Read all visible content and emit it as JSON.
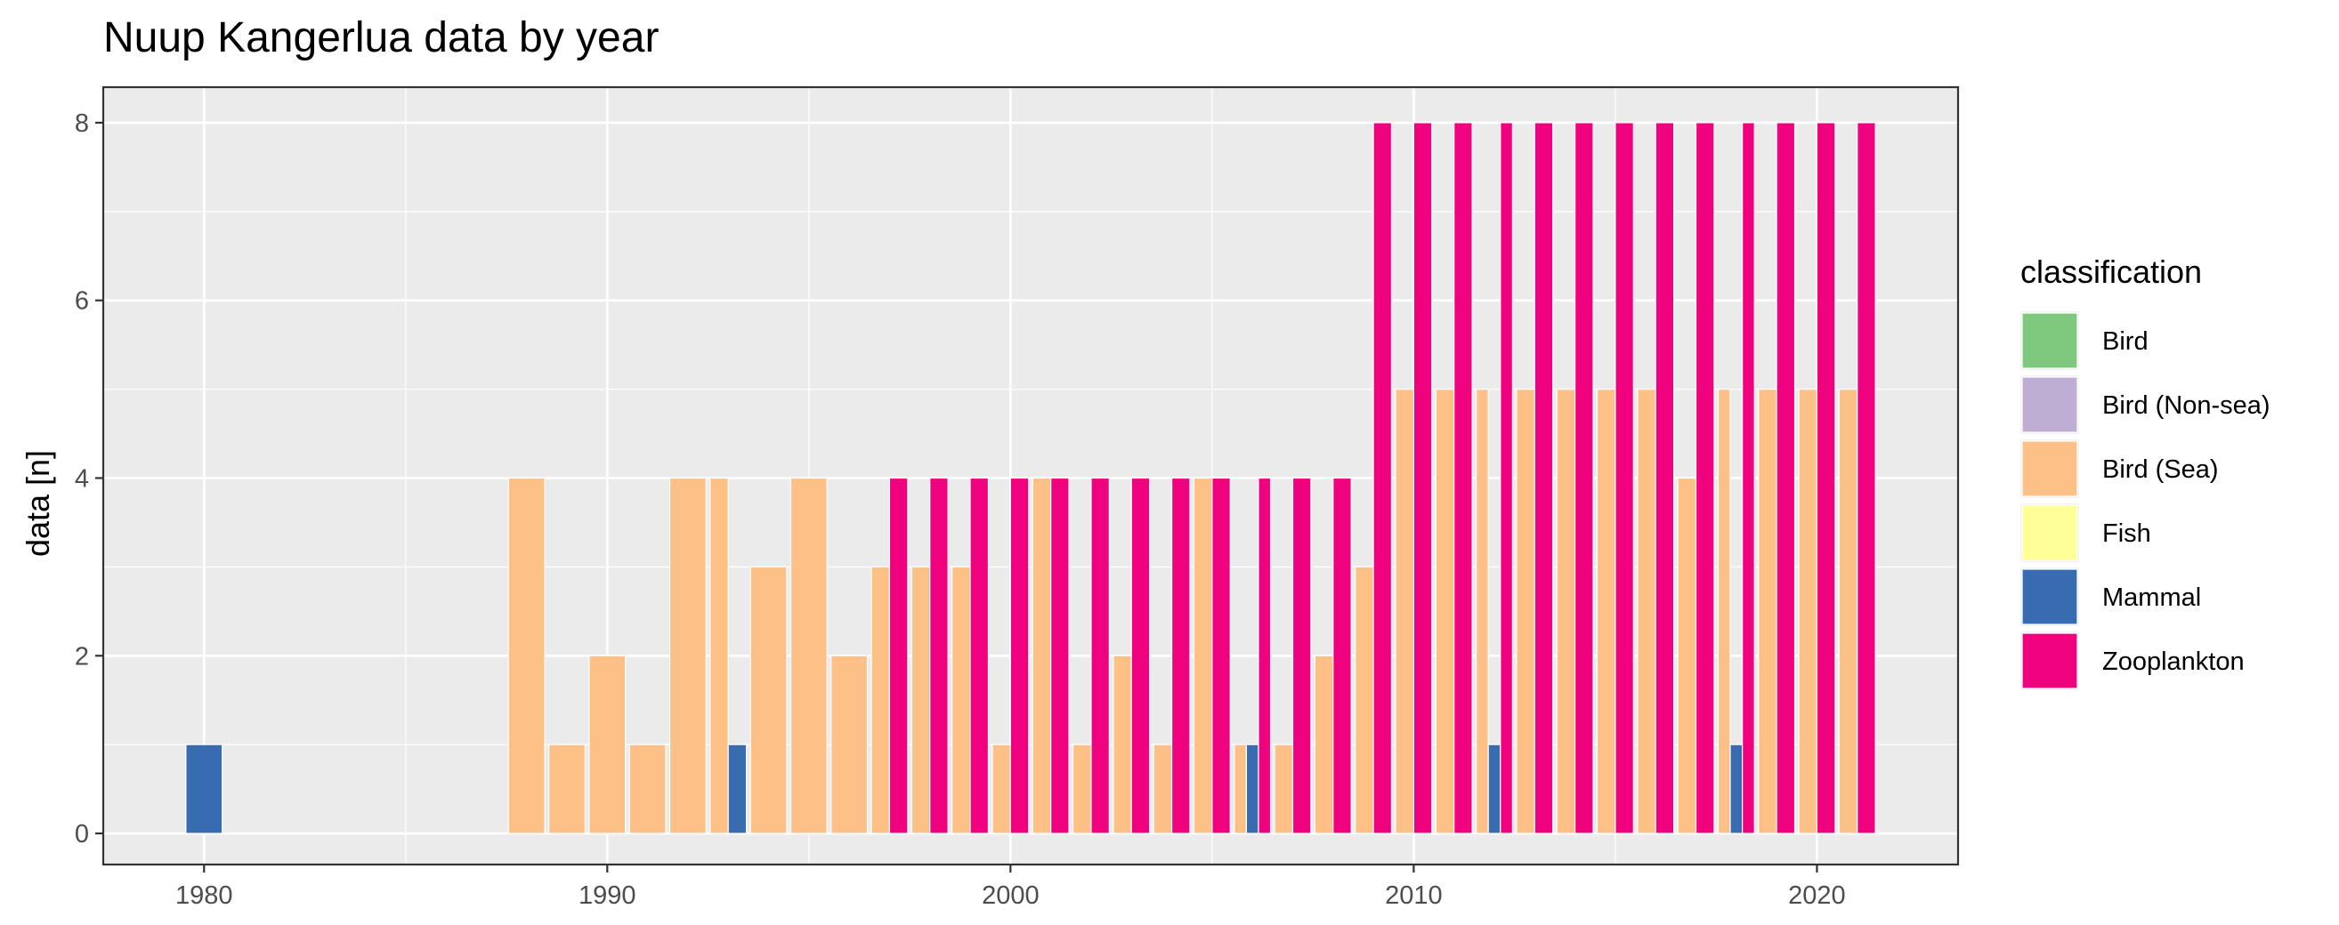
{
  "chart_data": {
    "type": "bar",
    "title": "Nuup Kangerlua data by year",
    "xlabel": "",
    "ylabel": "data [n]",
    "xlim": [
      1977.5,
      2023.5
    ],
    "ylim": [
      -0.35,
      8.4
    ],
    "x_ticks": [
      1980,
      1990,
      2000,
      2010,
      2020
    ],
    "y_ticks": [
      0,
      2,
      4,
      6,
      8
    ],
    "grid": true,
    "legend_position": "right",
    "legend_title": "classification",
    "series": [
      {
        "name": "Bird",
        "color": "#7fc97f",
        "points": []
      },
      {
        "name": "Bird (Non-sea)",
        "color": "#beaed4",
        "points": []
      },
      {
        "name": "Bird (Sea)",
        "color": "#fdc086",
        "points": [
          {
            "x": 1988,
            "y": 4
          },
          {
            "x": 1989,
            "y": 1
          },
          {
            "x": 1990,
            "y": 2
          },
          {
            "x": 1991,
            "y": 1
          },
          {
            "x": 1992,
            "y": 4
          },
          {
            "x": 1993,
            "y": 4
          },
          {
            "x": 1994,
            "y": 3
          },
          {
            "x": 1995,
            "y": 4
          },
          {
            "x": 1996,
            "y": 2
          },
          {
            "x": 1997,
            "y": 3
          },
          {
            "x": 1998,
            "y": 3
          },
          {
            "x": 1999,
            "y": 3
          },
          {
            "x": 2000,
            "y": 1
          },
          {
            "x": 2001,
            "y": 4
          },
          {
            "x": 2002,
            "y": 1
          },
          {
            "x": 2003,
            "y": 2
          },
          {
            "x": 2004,
            "y": 1
          },
          {
            "x": 2005,
            "y": 4
          },
          {
            "x": 2006,
            "y": 1
          },
          {
            "x": 2007,
            "y": 1
          },
          {
            "x": 2008,
            "y": 2
          },
          {
            "x": 2009,
            "y": 3
          },
          {
            "x": 2010,
            "y": 5
          },
          {
            "x": 2011,
            "y": 5
          },
          {
            "x": 2012,
            "y": 5
          },
          {
            "x": 2013,
            "y": 5
          },
          {
            "x": 2014,
            "y": 5
          },
          {
            "x": 2015,
            "y": 5
          },
          {
            "x": 2016,
            "y": 5
          },
          {
            "x": 2017,
            "y": 4
          },
          {
            "x": 2018,
            "y": 5
          },
          {
            "x": 2019,
            "y": 5
          },
          {
            "x": 2020,
            "y": 5
          },
          {
            "x": 2021,
            "y": 5
          }
        ]
      },
      {
        "name": "Fish",
        "color": "#ffff99",
        "points": []
      },
      {
        "name": "Mammal",
        "color": "#386cb0",
        "points": [
          {
            "x": 1980,
            "y": 1
          },
          {
            "x": 1993,
            "y": 1
          },
          {
            "x": 2006,
            "y": 1
          },
          {
            "x": 2012,
            "y": 1
          },
          {
            "x": 2018,
            "y": 1
          }
        ]
      },
      {
        "name": "Zooplankton",
        "color": "#f0027f",
        "points": [
          {
            "x": 1997,
            "y": 4
          },
          {
            "x": 1998,
            "y": 4
          },
          {
            "x": 1999,
            "y": 4
          },
          {
            "x": 2000,
            "y": 4
          },
          {
            "x": 2001,
            "y": 4
          },
          {
            "x": 2002,
            "y": 4
          },
          {
            "x": 2003,
            "y": 4
          },
          {
            "x": 2004,
            "y": 4
          },
          {
            "x": 2005,
            "y": 4
          },
          {
            "x": 2006,
            "y": 4
          },
          {
            "x": 2007,
            "y": 4
          },
          {
            "x": 2008,
            "y": 4
          },
          {
            "x": 2009,
            "y": 8
          },
          {
            "x": 2010,
            "y": 8
          },
          {
            "x": 2011,
            "y": 8
          },
          {
            "x": 2012,
            "y": 8
          },
          {
            "x": 2013,
            "y": 8
          },
          {
            "x": 2014,
            "y": 8
          },
          {
            "x": 2015,
            "y": 8
          },
          {
            "x": 2016,
            "y": 8
          },
          {
            "x": 2017,
            "y": 8
          },
          {
            "x": 2018,
            "y": 8
          },
          {
            "x": 2019,
            "y": 8
          },
          {
            "x": 2020,
            "y": 8
          },
          {
            "x": 2021,
            "y": 8
          }
        ]
      }
    ]
  }
}
